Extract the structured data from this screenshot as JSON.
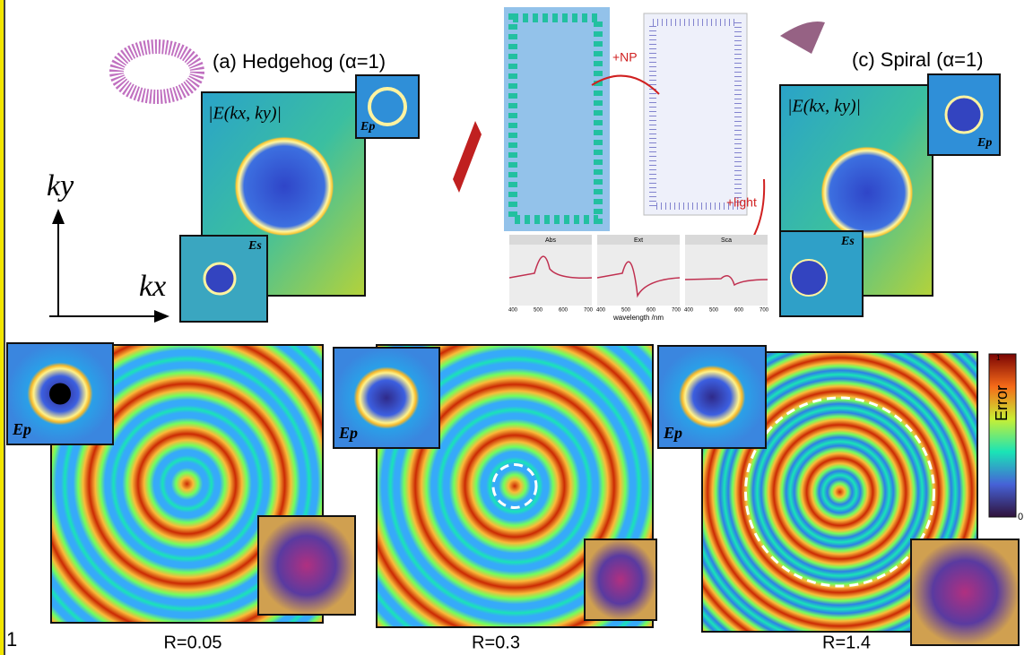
{
  "top": {
    "hedgehog": {
      "title": "(a) Hedgehog (α=1)",
      "field_label": "|E(kx, ky)|",
      "inset_p": "Ep",
      "inset_s": "Es"
    },
    "axes": {
      "ky": "ky",
      "kx": "kx"
    },
    "simulation": {
      "np_label": "+NP",
      "light_label": "+light",
      "panels": [
        "Abs",
        "Ext",
        "Sca"
      ],
      "ticks": [
        "400",
        "500",
        "600",
        "700"
      ],
      "x_label": "wavelength /nm"
    },
    "spiral": {
      "title": "(c) Spiral (α=1)",
      "field_label": "|E(kx, ky)|",
      "inset_p": "Ep",
      "inset_s": "Es"
    }
  },
  "bottom": {
    "panels": [
      {
        "label": "R=0.05",
        "inset": "Ep"
      },
      {
        "label": "R=0.3",
        "inset": "Ep"
      },
      {
        "label": "R=1.4",
        "inset": "Ep"
      }
    ],
    "colorbar": {
      "title": "Error",
      "min": "0",
      "max": "1"
    }
  },
  "page_number": "1"
}
